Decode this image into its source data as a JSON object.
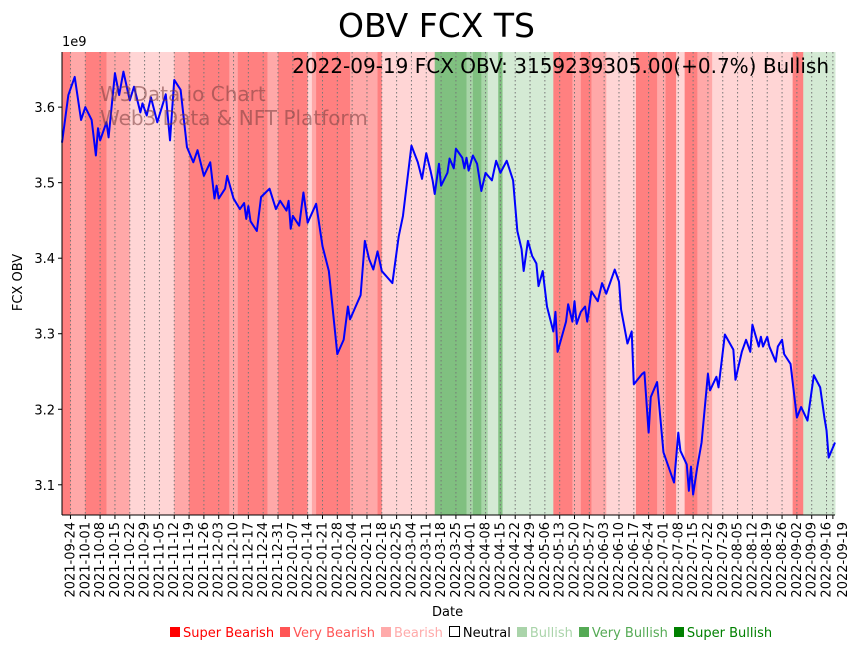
{
  "chart_data": {
    "type": "line",
    "title": "OBV FCX TS",
    "annotation": "2022-09-19 FCX OBV: 3159239305.00(+0.7%) Bullish",
    "watermark": [
      "W3Data.io Chart",
      "Web3 Data & NFT Platform"
    ],
    "xlabel": "Date",
    "ylabel": "FCX OBV",
    "y_exponent": "1e9",
    "x_unit": "days since 2021-09-20",
    "xlim": [
      0,
      365
    ],
    "ylim": [
      3.06,
      3.673
    ],
    "yticks": [
      "3.1",
      "3.2",
      "3.3",
      "3.4",
      "3.5",
      "3.6"
    ],
    "xticks": [
      "2021-09-24",
      "2021-10-01",
      "2021-10-08",
      "2021-10-15",
      "2021-10-22",
      "2021-10-29",
      "2021-11-05",
      "2021-11-12",
      "2021-11-19",
      "2021-11-26",
      "2021-12-03",
      "2021-12-10",
      "2021-12-17",
      "2021-12-24",
      "2021-12-31",
      "2022-01-07",
      "2022-01-14",
      "2022-01-21",
      "2022-01-28",
      "2022-02-04",
      "2022-02-11",
      "2022-02-18",
      "2022-02-25",
      "2022-03-04",
      "2022-03-11",
      "2022-03-18",
      "2022-03-25",
      "2022-04-01",
      "2022-04-08",
      "2022-04-15",
      "2022-04-22",
      "2022-04-29",
      "2022-05-06",
      "2022-05-13",
      "2022-05-20",
      "2022-05-27",
      "2022-06-03",
      "2022-06-10",
      "2022-06-17",
      "2022-06-24",
      "2022-07-01",
      "2022-07-08",
      "2022-07-15",
      "2022-07-22",
      "2022-07-29",
      "2022-08-05",
      "2022-08-12",
      "2022-08-19",
      "2022-08-26",
      "2022-09-02",
      "2022-09-09",
      "2022-09-16",
      "2022-09-19"
    ],
    "series": [
      {
        "name": "FCX OBV (1e9)",
        "color": "#0000ff",
        "points": [
          [
            0,
            3.553
          ],
          [
            3,
            3.616
          ],
          [
            6,
            3.64
          ],
          [
            9,
            3.583
          ],
          [
            11,
            3.6
          ],
          [
            14,
            3.583
          ],
          [
            16,
            3.536
          ],
          [
            17,
            3.572
          ],
          [
            18,
            3.556
          ],
          [
            21,
            3.58
          ],
          [
            22,
            3.56
          ],
          [
            25,
            3.645
          ],
          [
            27,
            3.616
          ],
          [
            29,
            3.647
          ],
          [
            32,
            3.609
          ],
          [
            34,
            3.627
          ],
          [
            37,
            3.593
          ],
          [
            38,
            3.605
          ],
          [
            40,
            3.589
          ],
          [
            42,
            3.613
          ],
          [
            45,
            3.58
          ],
          [
            49,
            3.617
          ],
          [
            51,
            3.556
          ],
          [
            53,
            3.636
          ],
          [
            56,
            3.623
          ],
          [
            59,
            3.547
          ],
          [
            62,
            3.527
          ],
          [
            64,
            3.543
          ],
          [
            67,
            3.509
          ],
          [
            70,
            3.527
          ],
          [
            72,
            3.479
          ],
          [
            73,
            3.496
          ],
          [
            74,
            3.479
          ],
          [
            77,
            3.492
          ],
          [
            78,
            3.509
          ],
          [
            81,
            3.479
          ],
          [
            84,
            3.465
          ],
          [
            86,
            3.473
          ],
          [
            87,
            3.452
          ],
          [
            88,
            3.469
          ],
          [
            89,
            3.449
          ],
          [
            92,
            3.436
          ],
          [
            94,
            3.481
          ],
          [
            98,
            3.492
          ],
          [
            101,
            3.465
          ],
          [
            103,
            3.476
          ],
          [
            106,
            3.463
          ],
          [
            107,
            3.476
          ],
          [
            108,
            3.439
          ],
          [
            109,
            3.456
          ],
          [
            112,
            3.443
          ],
          [
            114,
            3.487
          ],
          [
            116,
            3.447
          ],
          [
            120,
            3.472
          ],
          [
            123,
            3.416
          ],
          [
            126,
            3.383
          ],
          [
            130,
            3.273
          ],
          [
            133,
            3.292
          ],
          [
            135,
            3.336
          ],
          [
            136,
            3.319
          ],
          [
            141,
            3.351
          ],
          [
            143,
            3.423
          ],
          [
            145,
            3.399
          ],
          [
            147,
            3.385
          ],
          [
            149,
            3.409
          ],
          [
            151,
            3.383
          ],
          [
            156,
            3.367
          ],
          [
            159,
            3.429
          ],
          [
            161,
            3.456
          ],
          [
            165,
            3.549
          ],
          [
            168,
            3.527
          ],
          [
            170,
            3.505
          ],
          [
            172,
            3.539
          ],
          [
            174,
            3.516
          ],
          [
            175,
            3.503
          ],
          [
            176,
            3.485
          ],
          [
            178,
            3.525
          ],
          [
            179,
            3.496
          ],
          [
            182,
            3.513
          ],
          [
            183,
            3.532
          ],
          [
            185,
            3.519
          ],
          [
            186,
            3.545
          ],
          [
            189,
            3.533
          ],
          [
            190,
            3.519
          ],
          [
            191,
            3.533
          ],
          [
            192,
            3.516
          ],
          [
            194,
            3.536
          ],
          [
            196,
            3.525
          ],
          [
            198,
            3.489
          ],
          [
            200,
            3.513
          ],
          [
            203,
            3.503
          ],
          [
            205,
            3.529
          ],
          [
            207,
            3.513
          ],
          [
            210,
            3.529
          ],
          [
            213,
            3.503
          ],
          [
            215,
            3.436
          ],
          [
            217,
            3.412
          ],
          [
            218,
            3.383
          ],
          [
            220,
            3.423
          ],
          [
            222,
            3.403
          ],
          [
            224,
            3.393
          ],
          [
            225,
            3.363
          ],
          [
            227,
            3.383
          ],
          [
            229,
            3.336
          ],
          [
            232,
            3.303
          ],
          [
            233,
            3.329
          ],
          [
            234,
            3.276
          ],
          [
            236,
            3.296
          ],
          [
            238,
            3.316
          ],
          [
            239,
            3.339
          ],
          [
            241,
            3.316
          ],
          [
            242,
            3.343
          ],
          [
            243,
            3.313
          ],
          [
            245,
            3.329
          ],
          [
            247,
            3.336
          ],
          [
            248,
            3.316
          ],
          [
            250,
            3.356
          ],
          [
            253,
            3.343
          ],
          [
            255,
            3.367
          ],
          [
            257,
            3.353
          ],
          [
            259,
            3.369
          ],
          [
            261,
            3.385
          ],
          [
            263,
            3.369
          ],
          [
            264,
            3.332
          ],
          [
            267,
            3.287
          ],
          [
            269,
            3.303
          ],
          [
            270,
            3.233
          ],
          [
            274,
            3.247
          ],
          [
            275,
            3.249
          ],
          [
            277,
            3.169
          ],
          [
            278,
            3.216
          ],
          [
            281,
            3.236
          ],
          [
            284,
            3.143
          ],
          [
            289,
            3.103
          ],
          [
            291,
            3.169
          ],
          [
            292,
            3.145
          ],
          [
            295,
            3.127
          ],
          [
            296,
            3.092
          ],
          [
            297,
            3.124
          ],
          [
            298,
            3.087
          ],
          [
            300,
            3.124
          ],
          [
            302,
            3.156
          ],
          [
            305,
            3.247
          ],
          [
            306,
            3.225
          ],
          [
            309,
            3.243
          ],
          [
            310,
            3.229
          ],
          [
            313,
            3.299
          ],
          [
            317,
            3.279
          ],
          [
            318,
            3.239
          ],
          [
            321,
            3.276
          ],
          [
            323,
            3.292
          ],
          [
            325,
            3.276
          ],
          [
            326,
            3.312
          ],
          [
            329,
            3.283
          ],
          [
            330,
            3.296
          ],
          [
            331,
            3.283
          ],
          [
            333,
            3.296
          ],
          [
            334,
            3.283
          ],
          [
            337,
            3.263
          ],
          [
            338,
            3.283
          ],
          [
            340,
            3.292
          ],
          [
            341,
            3.273
          ],
          [
            344,
            3.26
          ],
          [
            347,
            3.189
          ],
          [
            349,
            3.203
          ],
          [
            352,
            3.185
          ],
          [
            355,
            3.245
          ],
          [
            358,
            3.229
          ],
          [
            360,
            3.189
          ],
          [
            361,
            3.172
          ],
          [
            362,
            3.136
          ],
          [
            365,
            3.156
          ]
        ]
      }
    ],
    "sentiment_bands": [
      [
        0,
        4,
        "very_bearish"
      ],
      [
        4,
        11,
        "bearish"
      ],
      [
        11,
        21,
        "very_bearish"
      ],
      [
        21,
        32,
        "bearish"
      ],
      [
        32,
        53,
        "light_bearish"
      ],
      [
        53,
        60,
        "bearish"
      ],
      [
        60,
        79,
        "very_bearish"
      ],
      [
        79,
        83,
        "bearish"
      ],
      [
        83,
        97,
        "very_bearish"
      ],
      [
        97,
        102,
        "bearish"
      ],
      [
        102,
        116,
        "very_bearish"
      ],
      [
        116,
        118,
        "light_bearish"
      ],
      [
        118,
        120,
        "bearish"
      ],
      [
        120,
        136,
        "very_bearish"
      ],
      [
        136,
        149,
        "bearish"
      ],
      [
        149,
        151,
        "very_bearish"
      ],
      [
        151,
        176,
        "light_bearish"
      ],
      [
        176,
        181,
        "very_bullish"
      ],
      [
        181,
        191,
        "very_bullish"
      ],
      [
        191,
        194,
        "bullish"
      ],
      [
        194,
        198,
        "very_bullish"
      ],
      [
        198,
        201,
        "bullish"
      ],
      [
        201,
        206,
        "light_bullish"
      ],
      [
        206,
        208,
        "very_bullish"
      ],
      [
        208,
        232,
        "light_bullish"
      ],
      [
        232,
        241,
        "very_bearish"
      ],
      [
        241,
        245,
        "bearish"
      ],
      [
        245,
        250,
        "very_bearish"
      ],
      [
        250,
        257,
        "bearish"
      ],
      [
        257,
        271,
        "light_bearish"
      ],
      [
        271,
        281,
        "very_bearish"
      ],
      [
        281,
        285,
        "bearish"
      ],
      [
        285,
        290,
        "very_bearish"
      ],
      [
        290,
        294,
        "light_bearish"
      ],
      [
        294,
        300,
        "very_bearish"
      ],
      [
        300,
        307,
        "bearish"
      ],
      [
        307,
        345,
        "light_bearish"
      ],
      [
        345,
        350,
        "very_bearish"
      ],
      [
        350,
        365,
        "light_bullish"
      ]
    ],
    "band_colors": {
      "very_bearish": "#ff8080",
      "bearish": "#ffa8a8",
      "light_bearish": "#ffd5d5",
      "very_bullish": "#80c080",
      "bullish": "#a8d5a8",
      "light_bullish": "#d4ead4"
    },
    "legend": [
      {
        "label": "Super Bearish",
        "color": "#ff0000"
      },
      {
        "label": "Very Bearish",
        "color": "#ff5555"
      },
      {
        "label": "Bearish",
        "color": "#ffaaaa"
      },
      {
        "label": "Neutral",
        "color": "#ffffff"
      },
      {
        "label": "Bullish",
        "color": "#aad4aa"
      },
      {
        "label": "Very Bullish",
        "color": "#55aa55"
      },
      {
        "label": "Super Bullish",
        "color": "#008000"
      }
    ],
    "grid": "vertical dotted",
    "legend_placement": "bottom"
  }
}
